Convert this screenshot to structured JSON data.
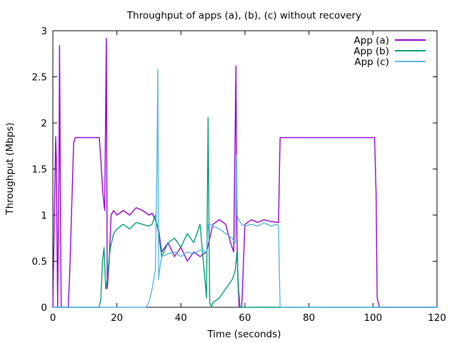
{
  "chart_data": {
    "type": "line",
    "title": "Throughput of apps (a), (b), (c) without recovery",
    "xlabel": "Time (seconds)",
    "ylabel": "Throughput (Mbps)",
    "xlim": [
      0,
      120
    ],
    "ylim": [
      0,
      3
    ],
    "xticks": [
      "0",
      "20",
      "40",
      "60",
      "80",
      "100",
      "120"
    ],
    "yticks": [
      "0",
      "0.5",
      "1",
      "1.5",
      "2",
      "2.5",
      "3"
    ],
    "grid": false,
    "legend_position": "top-right",
    "series": [
      {
        "name": "App (a)",
        "color": "#9400d3",
        "x": [
          0,
          0.9,
          1.1,
          1.5,
          1.9,
          2.1,
          2.4,
          2.6,
          2.9,
          3.2,
          4.8,
          5.2,
          6.0,
          6.5,
          7.0,
          14.5,
          15.0,
          15.6,
          16.2,
          16.7,
          17.0,
          17.6,
          18.2,
          19.0,
          20.0,
          22.0,
          24.0,
          26.0,
          28.0,
          30.0,
          31.0,
          32.0,
          33.0,
          34.0,
          36.0,
          38.0,
          40.0,
          42.0,
          44.0,
          46.0,
          48.0,
          50.0,
          52.0,
          54.0,
          55.5,
          56.5,
          57.2,
          57.5,
          57.8,
          58.2,
          59.0,
          60.0,
          62.0,
          64.0,
          66.0,
          68.0,
          70.5,
          70.8,
          71.0,
          72.0,
          80.0,
          90.0,
          100.5,
          101.0,
          101.3,
          102.0,
          110.0,
          120.0
        ],
        "y": [
          0,
          1.85,
          1.6,
          0,
          1.4,
          2.84,
          0.9,
          0,
          0,
          0,
          0,
          0.3,
          1.2,
          1.78,
          1.84,
          1.84,
          1.6,
          1.25,
          1.05,
          2.92,
          0.2,
          0.5,
          1.0,
          1.05,
          1.0,
          1.05,
          1.0,
          1.08,
          1.05,
          1.0,
          1.02,
          0.95,
          0.85,
          0.6,
          0.7,
          0.55,
          0.65,
          0.5,
          0.6,
          0.55,
          0.6,
          0.9,
          0.95,
          0.9,
          0.7,
          0.6,
          2.62,
          0.8,
          0.3,
          0,
          0,
          0.9,
          0.95,
          0.92,
          0.95,
          0.93,
          0.92,
          1.5,
          1.84,
          1.84,
          1.84,
          1.84,
          1.84,
          1.2,
          0.1,
          0,
          0,
          0
        ]
      },
      {
        "name": "App (b)",
        "color": "#009e73",
        "x": [
          0,
          14.5,
          15.0,
          15.5,
          16.0,
          16.5,
          17.0,
          17.5,
          18.0,
          19.0,
          20.0,
          22.0,
          24.0,
          26.0,
          28.0,
          30.0,
          31.0,
          32.0,
          33.0,
          34.0,
          36.0,
          38.0,
          40.0,
          42.0,
          44.0,
          46.0,
          47.5,
          48.0,
          48.5,
          49.0,
          49.5,
          50.0,
          52.0,
          54.0,
          56.0,
          57.0,
          57.5,
          58.0,
          58.5,
          59.0,
          60.0,
          70.0,
          80.0,
          100.0,
          120.0
        ],
        "y": [
          0,
          0,
          0.1,
          0.5,
          0.65,
          0.2,
          0.3,
          0.5,
          0.65,
          0.8,
          0.85,
          0.9,
          0.85,
          0.92,
          0.9,
          0.88,
          0.9,
          1.0,
          0.8,
          0.55,
          0.7,
          0.75,
          0.65,
          0.8,
          0.7,
          0.9,
          0.3,
          0.1,
          2.06,
          0.05,
          0,
          0.05,
          0.1,
          0.2,
          0.3,
          0.4,
          0.6,
          0.2,
          0,
          0,
          0,
          0,
          0,
          0,
          0
        ]
      },
      {
        "name": "App (c)",
        "color": "#56b4e9",
        "x": [
          0,
          29.0,
          30.0,
          31.0,
          32.0,
          32.5,
          32.8,
          33.0,
          33.5,
          34.0,
          36.0,
          38.0,
          40.0,
          42.0,
          44.0,
          46.0,
          48.0,
          48.5,
          49.0,
          52.0,
          54.0,
          56.0,
          57.0,
          57.3,
          57.6,
          58.0,
          59.0,
          60.0,
          62.0,
          64.0,
          66.0,
          68.0,
          70.0,
          70.5,
          70.8,
          71.0,
          72.0,
          80.0,
          100.0,
          120.0
        ],
        "y": [
          0,
          0,
          0.05,
          0.2,
          0.4,
          1.5,
          2.58,
          0.3,
          0.45,
          0.55,
          0.58,
          0.6,
          0.55,
          0.6,
          0.58,
          0.62,
          0.6,
          0.9,
          0.9,
          0.85,
          0.8,
          0.75,
          0.7,
          1.65,
          1.0,
          0.95,
          0.9,
          0.88,
          0.9,
          0.88,
          0.92,
          0.88,
          0.9,
          0.88,
          0.3,
          0,
          0,
          0,
          0,
          0
        ]
      }
    ]
  }
}
